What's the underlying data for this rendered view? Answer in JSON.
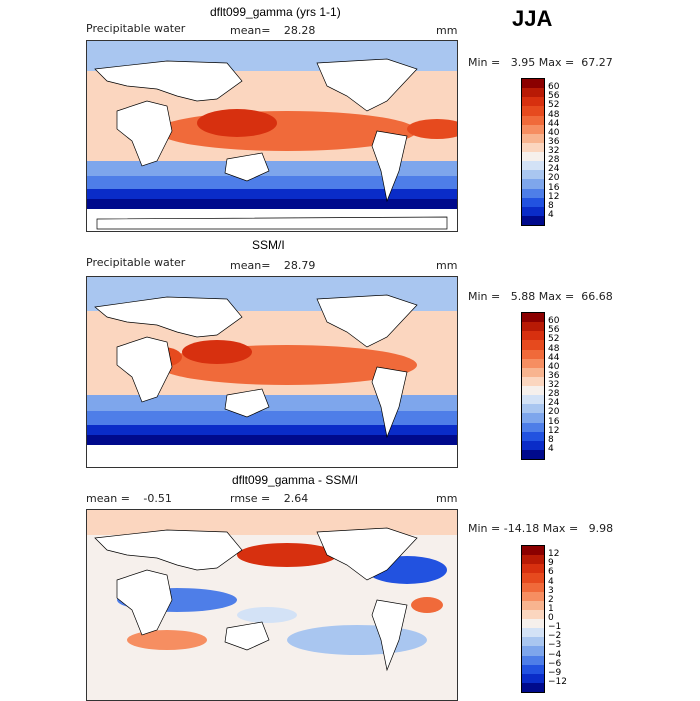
{
  "season": "JJA",
  "panels": [
    {
      "title": "dflt099_gamma (yrs 1-1)",
      "field_label": "Precipitable water",
      "stat_label": "mean=",
      "stat_value": "28.28",
      "units": "mm",
      "min_label": "Min =",
      "min_value": "3.95",
      "max_label": "Max =",
      "max_value": "67.27",
      "colorbar": {
        "levels": [
          "60",
          "56",
          "52",
          "48",
          "44",
          "40",
          "36",
          "32",
          "28",
          "24",
          "20",
          "16",
          "12",
          "8",
          "4"
        ],
        "colors": [
          "#8b0000",
          "#b81a05",
          "#d7300f",
          "#e64a1e",
          "#f06a3a",
          "#f68e61",
          "#f8b48f",
          "#fbd6bf",
          "#f6f0ec",
          "#d3e2f6",
          "#a9c6f0",
          "#7ea6ec",
          "#4e7ee8",
          "#2252e0",
          "#0a2cc8",
          "#000a8c"
        ]
      }
    },
    {
      "title": "SSM/I",
      "field_label": "Precipitable water",
      "stat_label": "mean=",
      "stat_value": "28.79",
      "units": "mm",
      "min_label": "Min =",
      "min_value": "5.88",
      "max_label": "Max =",
      "max_value": "66.68",
      "colorbar": {
        "levels": [
          "60",
          "56",
          "52",
          "48",
          "44",
          "40",
          "36",
          "32",
          "28",
          "24",
          "20",
          "16",
          "12",
          "8",
          "4"
        ],
        "colors": [
          "#8b0000",
          "#b81a05",
          "#d7300f",
          "#e64a1e",
          "#f06a3a",
          "#f68e61",
          "#f8b48f",
          "#fbd6bf",
          "#f6f0ec",
          "#d3e2f6",
          "#a9c6f0",
          "#7ea6ec",
          "#4e7ee8",
          "#2252e0",
          "#0a2cc8",
          "#000a8c"
        ]
      }
    },
    {
      "title": "dflt099_gamma - SSM/I",
      "field_label": "mean =",
      "field_value": "-0.51",
      "stat_label": "rmse =",
      "stat_value": "2.64",
      "units": "mm",
      "min_label": "Min =",
      "min_value": "-14.18",
      "max_label": "Max =",
      "max_value": "9.98",
      "colorbar": {
        "levels": [
          "12",
          "9",
          "6",
          "4",
          "3",
          "2",
          "1",
          "0",
          "−1",
          "−2",
          "−3",
          "−4",
          "−6",
          "−9",
          "−12"
        ],
        "colors": [
          "#8b0000",
          "#b81a05",
          "#d7300f",
          "#e64a1e",
          "#f06a3a",
          "#f68e61",
          "#f8b48f",
          "#fbd6bf",
          "#f6f0ec",
          "#d3e2f6",
          "#a9c6f0",
          "#7ea6ec",
          "#4e7ee8",
          "#2252e0",
          "#0a2cc8",
          "#000a8c"
        ]
      }
    }
  ]
}
